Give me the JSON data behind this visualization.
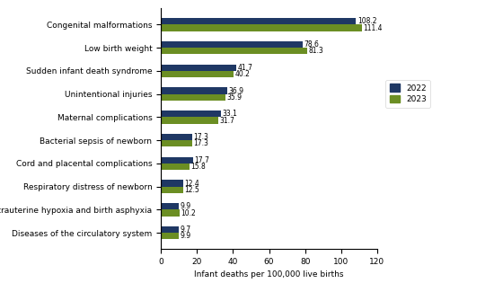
{
  "categories": [
    "Diseases of the circulatory system",
    "Intrauterine hypoxia and birth asphyxia",
    "Respiratory distress of newborn",
    "Cord and placental complications",
    "Bacterial sepsis of newborn",
    "Maternal complications",
    "Unintentional injuries",
    "Sudden infant death syndrome",
    "Low birth weight",
    "Congenital malformations"
  ],
  "values_2022": [
    9.7,
    9.9,
    12.4,
    17.7,
    17.3,
    33.1,
    36.9,
    41.7,
    78.6,
    108.2
  ],
  "values_2023": [
    9.9,
    10.2,
    12.5,
    15.8,
    17.3,
    31.7,
    35.9,
    40.2,
    81.3,
    111.4
  ],
  "color_2022": "#1f3864",
  "color_2023": "#6b8e23",
  "xlabel": "Infant deaths per 100,000 live births",
  "xlim": [
    0,
    120
  ],
  "xticks": [
    0,
    20,
    40,
    60,
    80,
    100,
    120
  ],
  "legend_2022": "2022",
  "legend_2023": "2023",
  "bar_height": 0.28,
  "label_fontsize": 6.5,
  "tick_fontsize": 6.5,
  "value_fontsize": 5.5
}
